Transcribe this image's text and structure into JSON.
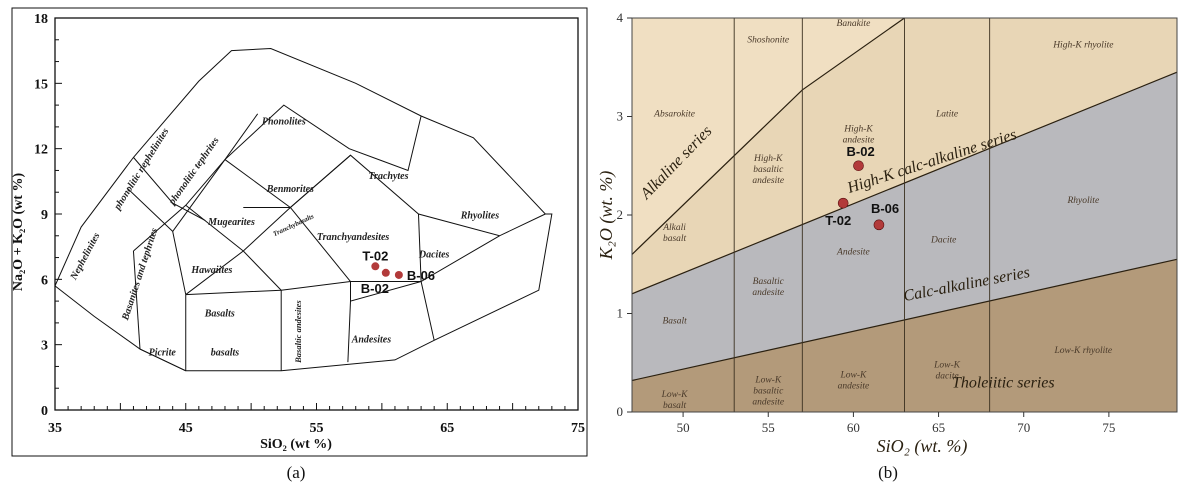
{
  "chart_data": [
    {
      "type": "scatter",
      "title": "",
      "xlabel": "SiO₂ (wt %)",
      "ylabel": "Na₂O + K₂O (wt %)",
      "xlim": [
        35,
        75
      ],
      "ylim": [
        0,
        18
      ],
      "x_ticks": [
        "35",
        "45",
        "55",
        "65",
        "75"
      ],
      "y_ticks": [
        "0",
        "3",
        "6",
        "9",
        "12",
        "15",
        "18"
      ],
      "fields": [
        "Nephelinites",
        "phonolitic nephelinites",
        "phonolitic tephrites",
        "Phonolites",
        "Trachytes",
        "Rhyolites",
        "Benmorites",
        "Mugearites",
        "Tranchybasalts",
        "Tranchyandesites",
        "Dacites",
        "Hawaiites",
        "Basalts",
        "Basanites and tephrites",
        "Picrite basalts",
        "Basaltic andesites",
        "Andesites"
      ],
      "points": [
        {
          "label": "T-02",
          "x": 59.5,
          "y": 6.6
        },
        {
          "label": "B-02",
          "x": 60.3,
          "y": 6.3
        },
        {
          "label": "B-06",
          "x": 61.3,
          "y": 6.2
        }
      ],
      "caption": "(a)",
      "colors": {
        "point": "#b23a3a"
      }
    },
    {
      "type": "scatter",
      "title": "",
      "xlabel": "SiO₂ (wt. %)",
      "ylabel": "K₂O (wt. %)",
      "xlim": [
        47,
        79
      ],
      "ylim": [
        0,
        4
      ],
      "x_ticks": [
        "50",
        "55",
        "60",
        "65",
        "70",
        "75"
      ],
      "y_ticks": [
        "0",
        "1",
        "2",
        "3",
        "4"
      ],
      "series_labels": [
        "Alkaline series",
        "High-K calc-alkaline series",
        "Calc-alkaline series",
        "Tholeiitic series"
      ],
      "fields": [
        {
          "text": "Absarokite",
          "x": 49.5,
          "y": 3.0
        },
        {
          "text": "Shoshonite",
          "x": 55.0,
          "y": 3.75
        },
        {
          "text": "Banakite",
          "x": 60.0,
          "y": 3.92
        },
        {
          "text": "Latite",
          "x": 65.5,
          "y": 3.0
        },
        {
          "text": "High-K rhyolite",
          "x": 73.5,
          "y": 3.7
        },
        {
          "text": "High-K andesite",
          "x": 60.3,
          "y": 2.85
        },
        {
          "text": "High-K basaltic andesite",
          "x": 55.0,
          "y": 2.55
        },
        {
          "text": "Alkali basalt",
          "x": 49.5,
          "y": 1.85
        },
        {
          "text": "Rhyolite",
          "x": 73.5,
          "y": 2.12
        },
        {
          "text": "Dacite",
          "x": 65.3,
          "y": 1.72
        },
        {
          "text": "Andesite",
          "x": 60.0,
          "y": 1.6
        },
        {
          "text": "Basaltic andesite",
          "x": 55.0,
          "y": 1.3
        },
        {
          "text": "Basalt",
          "x": 49.5,
          "y": 0.9
        },
        {
          "text": "Low-K basalt",
          "x": 49.5,
          "y": 0.15
        },
        {
          "text": "Low-K basaltic andesite",
          "x": 55.0,
          "y": 0.3
        },
        {
          "text": "Low-K andesite",
          "x": 60.0,
          "y": 0.35
        },
        {
          "text": "Low-K dacite",
          "x": 65.5,
          "y": 0.45
        },
        {
          "text": "Low-K rhyolite",
          "x": 73.5,
          "y": 0.6
        }
      ],
      "points": [
        {
          "label": "B-02",
          "x": 60.3,
          "y": 2.5
        },
        {
          "label": "T-02",
          "x": 59.4,
          "y": 2.12
        },
        {
          "label": "B-06",
          "x": 61.5,
          "y": 1.9
        }
      ],
      "caption": "(b)",
      "colors": {
        "point": "#b23a3a",
        "highk": "#e8d6b6",
        "calc": "#b9b9bd",
        "thol": "#b39a7a"
      }
    }
  ]
}
